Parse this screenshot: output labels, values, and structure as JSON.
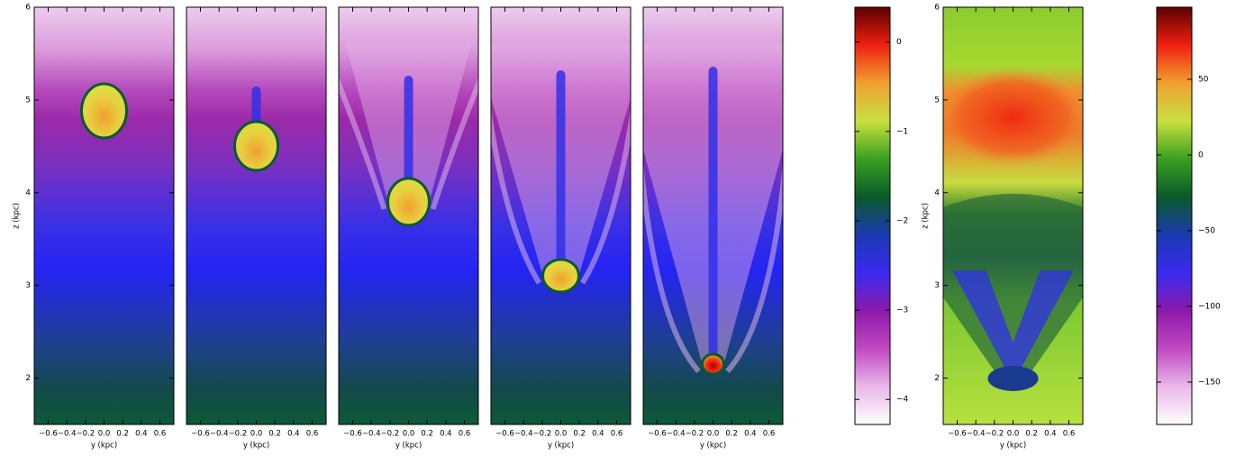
{
  "chart_data": [
    {
      "type": "image",
      "xlim": [
        -0.75,
        0.75
      ],
      "ylim": [
        1.5,
        6
      ],
      "xticks": [
        {
          "value": -0.6,
          "label": "−0.6"
        },
        {
          "value": -0.4,
          "label": "−0.4"
        },
        {
          "value": -0.2,
          "label": "−0.2"
        },
        {
          "value": 0,
          "label": "0.0"
        },
        0.2,
        0.4,
        0.6
      ],
      "yticks": [
        2,
        3,
        4,
        5,
        6
      ],
      "xlabel": "y (kpc)",
      "ylabel": "z (kpc)"
    },
    {
      "type": "image",
      "xlim": [
        -0.75,
        0.75
      ],
      "ylim": [
        1.5,
        6
      ],
      "xticks": [
        {
          "value": -0.6,
          "label": "−0.6"
        },
        {
          "value": -0.4,
          "label": "−0.4"
        },
        {
          "value": -0.2,
          "label": "−0.2"
        },
        {
          "value": 0,
          "label": "0.0"
        },
        0.2,
        0.4,
        0.6
      ],
      "xlabel": "y (kpc)"
    },
    {
      "type": "image",
      "xlim": [
        -0.75,
        0.75
      ],
      "ylim": [
        1.5,
        6
      ],
      "xticks": [
        {
          "value": -0.6,
          "label": "−0.6"
        },
        {
          "value": -0.4,
          "label": "−0.4"
        },
        {
          "value": -0.2,
          "label": "−0.2"
        },
        {
          "value": 0,
          "label": "0.0"
        },
        0.2,
        0.4,
        0.6
      ],
      "xlabel": "y (kpc)"
    },
    {
      "type": "image",
      "xlim": [
        -0.75,
        0.75
      ],
      "ylim": [
        1.5,
        6
      ],
      "xticks": [
        {
          "value": -0.6,
          "label": "−0.6"
        },
        {
          "value": -0.4,
          "label": "−0.4"
        },
        {
          "value": -0.2,
          "label": "−0.2"
        },
        {
          "value": 0,
          "label": "0.0"
        },
        0.2,
        0.4,
        0.6
      ],
      "xlabel": "y (kpc)"
    },
    {
      "type": "image",
      "xlim": [
        -0.75,
        0.75
      ],
      "ylim": [
        1.5,
        6
      ],
      "xticks": [
        {
          "value": -0.6,
          "label": "−0.6"
        },
        {
          "value": -0.4,
          "label": "−0.4"
        },
        {
          "value": -0.2,
          "label": "−0.2"
        },
        {
          "value": 0,
          "label": "0.0"
        },
        0.2,
        0.4,
        0.6
      ],
      "xlabel": "y (kpc)"
    },
    {
      "type": "colorbar",
      "ylim": [
        -4.28,
        0.39
      ],
      "yticks": [
        0,
        {
          "value": -1,
          "label": "−1"
        },
        {
          "value": -2,
          "label": "−2"
        },
        {
          "value": -3,
          "label": "−3"
        },
        {
          "value": -4,
          "label": "−4"
        }
      ],
      "colormap": [
        "#ffffff",
        "#e8b8e8",
        "#c048c0",
        "#8a1aa8",
        "#3a2af0",
        "#1a3ab0",
        "#0a5a28",
        "#3aa020",
        "#c8e040",
        "#f0a030",
        "#f02010",
        "#5a0000"
      ]
    },
    {
      "type": "image",
      "xlim": [
        -0.75,
        0.75
      ],
      "ylim": [
        1.5,
        6
      ],
      "xticks": [
        {
          "value": -0.6,
          "label": "−0.6"
        },
        {
          "value": -0.4,
          "label": "−0.4"
        },
        {
          "value": -0.2,
          "label": "−0.2"
        },
        {
          "value": 0,
          "label": "0.0"
        },
        0.2,
        0.4,
        0.6
      ],
      "yticks": [
        2,
        3,
        4,
        5,
        6
      ],
      "xlabel": "y (kpc)",
      "ylabel": "z (kpc)"
    },
    {
      "type": "colorbar",
      "ylim": [
        -178,
        97.6
      ],
      "yticks": [
        50,
        0,
        {
          "value": -50,
          "label": "−50"
        },
        {
          "value": -100,
          "label": "−100"
        },
        {
          "value": -150,
          "label": "−150"
        }
      ],
      "colormap": [
        "#ffffff",
        "#e8b8e8",
        "#c048c0",
        "#8a1aa8",
        "#3a2af0",
        "#1a3ab0",
        "#0a5a28",
        "#3aa020",
        "#c8e040",
        "#f0a030",
        "#f02010",
        "#5a0000"
      ]
    }
  ]
}
